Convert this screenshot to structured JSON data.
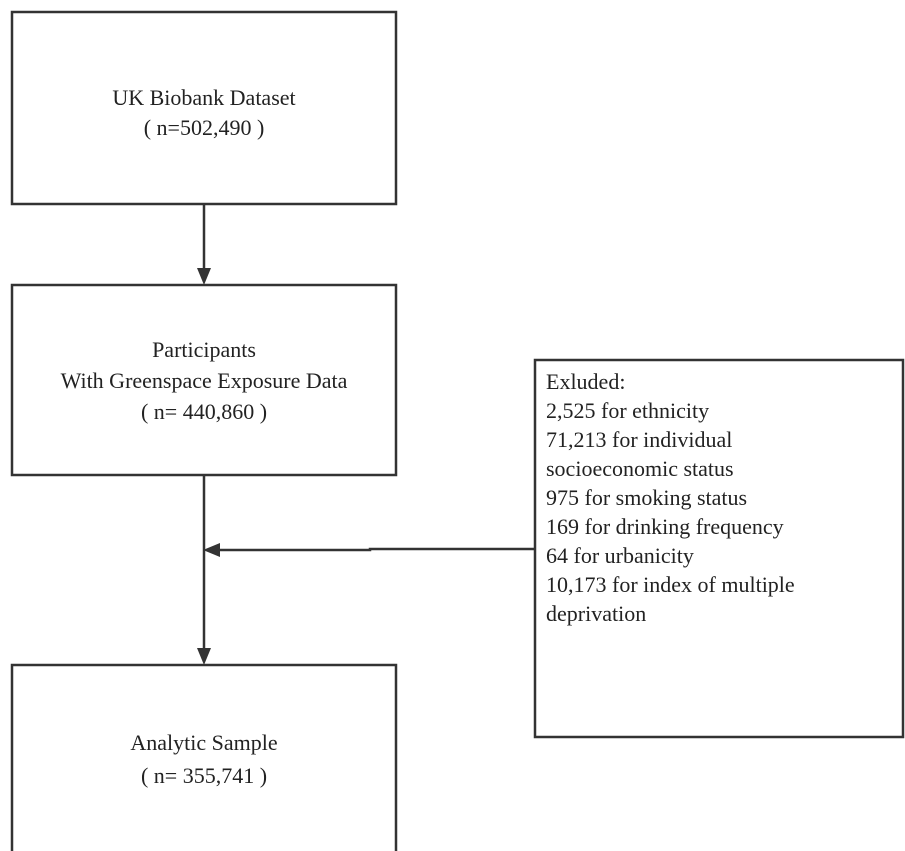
{
  "nodes": [
    {
      "lines": [
        "UK Biobank Dataset",
        "( n=502,490 )"
      ]
    },
    {
      "lines": [
        "Participants",
        "With Greenspace Exposure Data",
        "( n= 440,860 )"
      ]
    },
    {
      "lines": [
        "Analytic Sample",
        "( n= 355,741 )"
      ]
    }
  ],
  "exclusion": {
    "lines": [
      "Exluded:",
      "2,525 for ethnicity",
      "71,213 for individual",
      "socioeconomic status",
      "975 for smoking status",
      "169 for drinking frequency",
      "64 for urbanicity",
      "10,173 for index of multiple",
      "deprivation"
    ]
  }
}
